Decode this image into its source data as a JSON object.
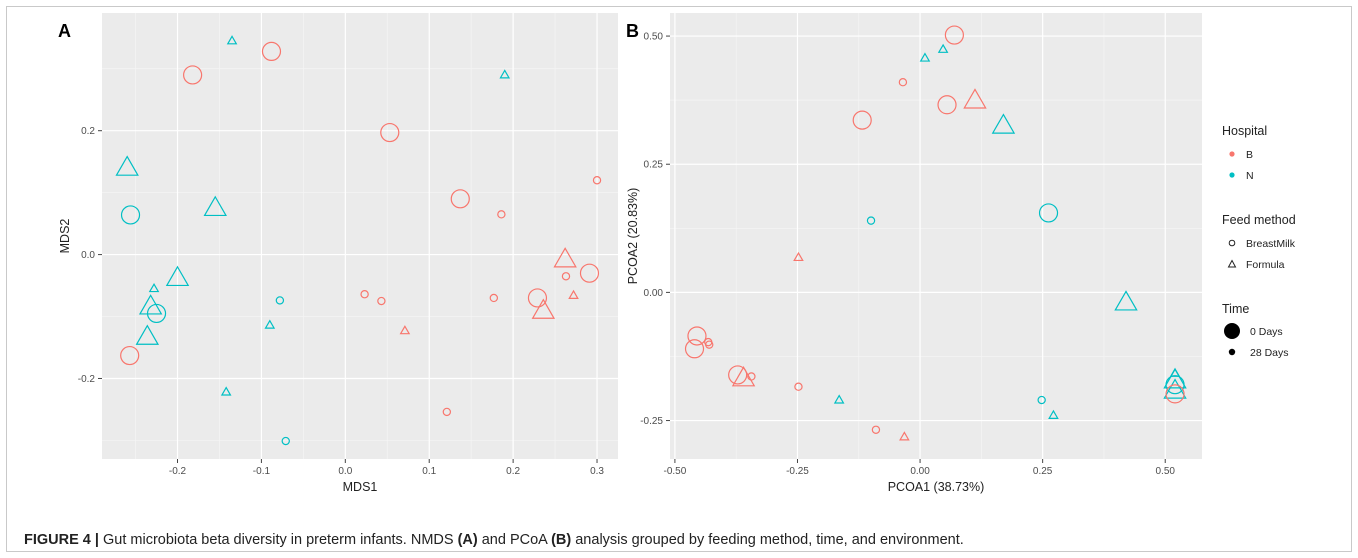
{
  "caption": {
    "label": "FIGURE 4 |",
    "text1": " Gut microbiota beta diversity in preterm infants. NMDS ",
    "a": "(A)",
    "text2": " and PCoA ",
    "b": "(B)",
    "text3": " analysis grouped by feeding method, time, and environment."
  },
  "legend": {
    "hospital_title": "Hospital",
    "hospital_items": [
      "B",
      "N"
    ],
    "feed_title": "Feed method",
    "feed_items": [
      "BreastMilk",
      "Formula"
    ],
    "time_title": "Time",
    "time_items": [
      "0 Days",
      "28 Days"
    ]
  },
  "colors": {
    "B": "#f8766d",
    "N": "#00bfc4",
    "panel_bg": "#ebebeb",
    "grid": "#ffffff"
  },
  "chart_data": [
    {
      "type": "scatter",
      "panel_label": "A",
      "xlabel": "MDS1",
      "ylabel": "MDS2",
      "xlim": [
        -0.29,
        0.325
      ],
      "ylim": [
        -0.33,
        0.39
      ],
      "xticks": [
        -0.2,
        -0.1,
        0.0,
        0.1,
        0.2,
        0.3
      ],
      "xtick_labels": [
        "-0.2",
        "-0.1",
        "0.0",
        "0.1",
        "0.2",
        "0.3"
      ],
      "yticks": [
        -0.2,
        0.0,
        0.2
      ],
      "ytick_labels": [
        "-0.2",
        "0.0",
        "0.2"
      ],
      "grid": true,
      "points": [
        {
          "x": -0.135,
          "y": 0.345,
          "h": "N",
          "f": "Formula",
          "t": "28 Days"
        },
        {
          "x": -0.088,
          "y": 0.328,
          "h": "B",
          "f": "BreastMilk",
          "t": "0 Days"
        },
        {
          "x": -0.182,
          "y": 0.29,
          "h": "B",
          "f": "BreastMilk",
          "t": "0 Days"
        },
        {
          "x": 0.19,
          "y": 0.29,
          "h": "N",
          "f": "Formula",
          "t": "28 Days"
        },
        {
          "x": 0.053,
          "y": 0.197,
          "h": "B",
          "f": "BreastMilk",
          "t": "0 Days"
        },
        {
          "x": -0.26,
          "y": 0.14,
          "h": "N",
          "f": "Formula",
          "t": "0 Days"
        },
        {
          "x": 0.3,
          "y": 0.12,
          "h": "B",
          "f": "BreastMilk",
          "t": "28 Days"
        },
        {
          "x": 0.137,
          "y": 0.09,
          "h": "B",
          "f": "BreastMilk",
          "t": "0 Days"
        },
        {
          "x": -0.155,
          "y": 0.075,
          "h": "N",
          "f": "Formula",
          "t": "0 Days"
        },
        {
          "x": 0.186,
          "y": 0.065,
          "h": "B",
          "f": "BreastMilk",
          "t": "28 Days"
        },
        {
          "x": -0.256,
          "y": 0.064,
          "h": "N",
          "f": "BreastMilk",
          "t": "0 Days"
        },
        {
          "x": 0.262,
          "y": -0.008,
          "h": "B",
          "f": "Formula",
          "t": "0 Days"
        },
        {
          "x": 0.291,
          "y": -0.03,
          "h": "B",
          "f": "BreastMilk",
          "t": "0 Days"
        },
        {
          "x": 0.263,
          "y": -0.035,
          "h": "B",
          "f": "BreastMilk",
          "t": "28 Days"
        },
        {
          "x": -0.2,
          "y": -0.038,
          "h": "N",
          "f": "Formula",
          "t": "0 Days"
        },
        {
          "x": -0.228,
          "y": -0.055,
          "h": "N",
          "f": "Formula",
          "t": "28 Days"
        },
        {
          "x": 0.023,
          "y": -0.064,
          "h": "B",
          "f": "BreastMilk",
          "t": "28 Days"
        },
        {
          "x": 0.272,
          "y": -0.066,
          "h": "B",
          "f": "Formula",
          "t": "28 Days"
        },
        {
          "x": 0.229,
          "y": -0.07,
          "h": "B",
          "f": "BreastMilk",
          "t": "0 Days"
        },
        {
          "x": 0.177,
          "y": -0.07,
          "h": "B",
          "f": "BreastMilk",
          "t": "28 Days"
        },
        {
          "x": -0.078,
          "y": -0.074,
          "h": "N",
          "f": "BreastMilk",
          "t": "28 Days"
        },
        {
          "x": 0.043,
          "y": -0.075,
          "h": "B",
          "f": "BreastMilk",
          "t": "28 Days"
        },
        {
          "x": -0.232,
          "y": -0.084,
          "h": "N",
          "f": "Formula",
          "t": "0 Days"
        },
        {
          "x": 0.236,
          "y": -0.091,
          "h": "B",
          "f": "Formula",
          "t": "0 Days"
        },
        {
          "x": -0.225,
          "y": -0.095,
          "h": "N",
          "f": "BreastMilk",
          "t": "0 Days"
        },
        {
          "x": -0.09,
          "y": -0.114,
          "h": "N",
          "f": "Formula",
          "t": "28 Days"
        },
        {
          "x": 0.071,
          "y": -0.123,
          "h": "B",
          "f": "Formula",
          "t": "28 Days"
        },
        {
          "x": -0.236,
          "y": -0.133,
          "h": "N",
          "f": "Formula",
          "t": "0 Days"
        },
        {
          "x": -0.257,
          "y": -0.163,
          "h": "B",
          "f": "BreastMilk",
          "t": "0 Days"
        },
        {
          "x": -0.142,
          "y": -0.222,
          "h": "N",
          "f": "Formula",
          "t": "28 Days"
        },
        {
          "x": 0.121,
          "y": -0.254,
          "h": "B",
          "f": "BreastMilk",
          "t": "28 Days"
        },
        {
          "x": -0.071,
          "y": -0.301,
          "h": "N",
          "f": "BreastMilk",
          "t": "28 Days"
        }
      ]
    },
    {
      "type": "scatter",
      "panel_label": "B",
      "xlabel": "PCOA1 (38.73%)",
      "ylabel": "PCOA2 (20.83%)",
      "xlim": [
        -0.51,
        0.575
      ],
      "ylim": [
        -0.325,
        0.545
      ],
      "xticks": [
        -0.5,
        -0.25,
        0.0,
        0.25,
        0.5
      ],
      "xtick_labels": [
        "-0.50",
        "-0.25",
        "0.00",
        "0.25",
        "0.50"
      ],
      "yticks": [
        -0.25,
        0.0,
        0.25,
        0.5
      ],
      "ytick_labels": [
        "-0.25",
        "0.00",
        "0.25",
        "0.50"
      ],
      "grid": true,
      "points": [
        {
          "x": 0.07,
          "y": 0.502,
          "h": "B",
          "f": "BreastMilk",
          "t": "0 Days"
        },
        {
          "x": 0.047,
          "y": 0.474,
          "h": "N",
          "f": "Formula",
          "t": "28 Days"
        },
        {
          "x": 0.01,
          "y": 0.457,
          "h": "N",
          "f": "Formula",
          "t": "28 Days"
        },
        {
          "x": -0.035,
          "y": 0.41,
          "h": "B",
          "f": "BreastMilk",
          "t": "28 Days"
        },
        {
          "x": 0.112,
          "y": 0.374,
          "h": "B",
          "f": "Formula",
          "t": "0 Days"
        },
        {
          "x": 0.055,
          "y": 0.366,
          "h": "B",
          "f": "BreastMilk",
          "t": "0 Days"
        },
        {
          "x": -0.118,
          "y": 0.336,
          "h": "B",
          "f": "BreastMilk",
          "t": "0 Days"
        },
        {
          "x": 0.17,
          "y": 0.325,
          "h": "N",
          "f": "Formula",
          "t": "0 Days"
        },
        {
          "x": 0.262,
          "y": 0.155,
          "h": "N",
          "f": "BreastMilk",
          "t": "0 Days"
        },
        {
          "x": -0.1,
          "y": 0.14,
          "h": "N",
          "f": "BreastMilk",
          "t": "28 Days"
        },
        {
          "x": -0.248,
          "y": 0.068,
          "h": "B",
          "f": "Formula",
          "t": "28 Days"
        },
        {
          "x": 0.42,
          "y": -0.02,
          "h": "N",
          "f": "Formula",
          "t": "0 Days"
        },
        {
          "x": -0.455,
          "y": -0.085,
          "h": "B",
          "f": "BreastMilk",
          "t": "0 Days"
        },
        {
          "x": -0.432,
          "y": -0.097,
          "h": "B",
          "f": "BreastMilk",
          "t": "28 Days"
        },
        {
          "x": -0.43,
          "y": -0.102,
          "h": "B",
          "f": "BreastMilk",
          "t": "28 Days"
        },
        {
          "x": -0.46,
          "y": -0.11,
          "h": "B",
          "f": "BreastMilk",
          "t": "0 Days"
        },
        {
          "x": -0.372,
          "y": -0.161,
          "h": "B",
          "f": "BreastMilk",
          "t": "0 Days"
        },
        {
          "x": -0.36,
          "y": -0.168,
          "h": "B",
          "f": "Formula",
          "t": "0 Days"
        },
        {
          "x": -0.344,
          "y": -0.164,
          "h": "B",
          "f": "BreastMilk",
          "t": "28 Days"
        },
        {
          "x": 0.52,
          "y": -0.158,
          "h": "N",
          "f": "Formula",
          "t": "28 Days"
        },
        {
          "x": 0.52,
          "y": -0.172,
          "h": "N",
          "f": "Formula",
          "t": "0 Days"
        },
        {
          "x": 0.52,
          "y": -0.18,
          "h": "N",
          "f": "BreastMilk",
          "t": "0 Days"
        },
        {
          "x": 0.52,
          "y": -0.192,
          "h": "N",
          "f": "Formula",
          "t": "0 Days"
        },
        {
          "x": 0.52,
          "y": -0.198,
          "h": "B",
          "f": "BreastMilk",
          "t": "0 Days"
        },
        {
          "x": -0.248,
          "y": -0.184,
          "h": "B",
          "f": "BreastMilk",
          "t": "28 Days"
        },
        {
          "x": 0.248,
          "y": -0.21,
          "h": "N",
          "f": "BreastMilk",
          "t": "28 Days"
        },
        {
          "x": -0.165,
          "y": -0.21,
          "h": "N",
          "f": "Formula",
          "t": "28 Days"
        },
        {
          "x": 0.272,
          "y": -0.24,
          "h": "N",
          "f": "Formula",
          "t": "28 Days"
        },
        {
          "x": -0.09,
          "y": -0.268,
          "h": "B",
          "f": "BreastMilk",
          "t": "28 Days"
        },
        {
          "x": -0.032,
          "y": -0.282,
          "h": "B",
          "f": "Formula",
          "t": "28 Days"
        }
      ]
    }
  ]
}
